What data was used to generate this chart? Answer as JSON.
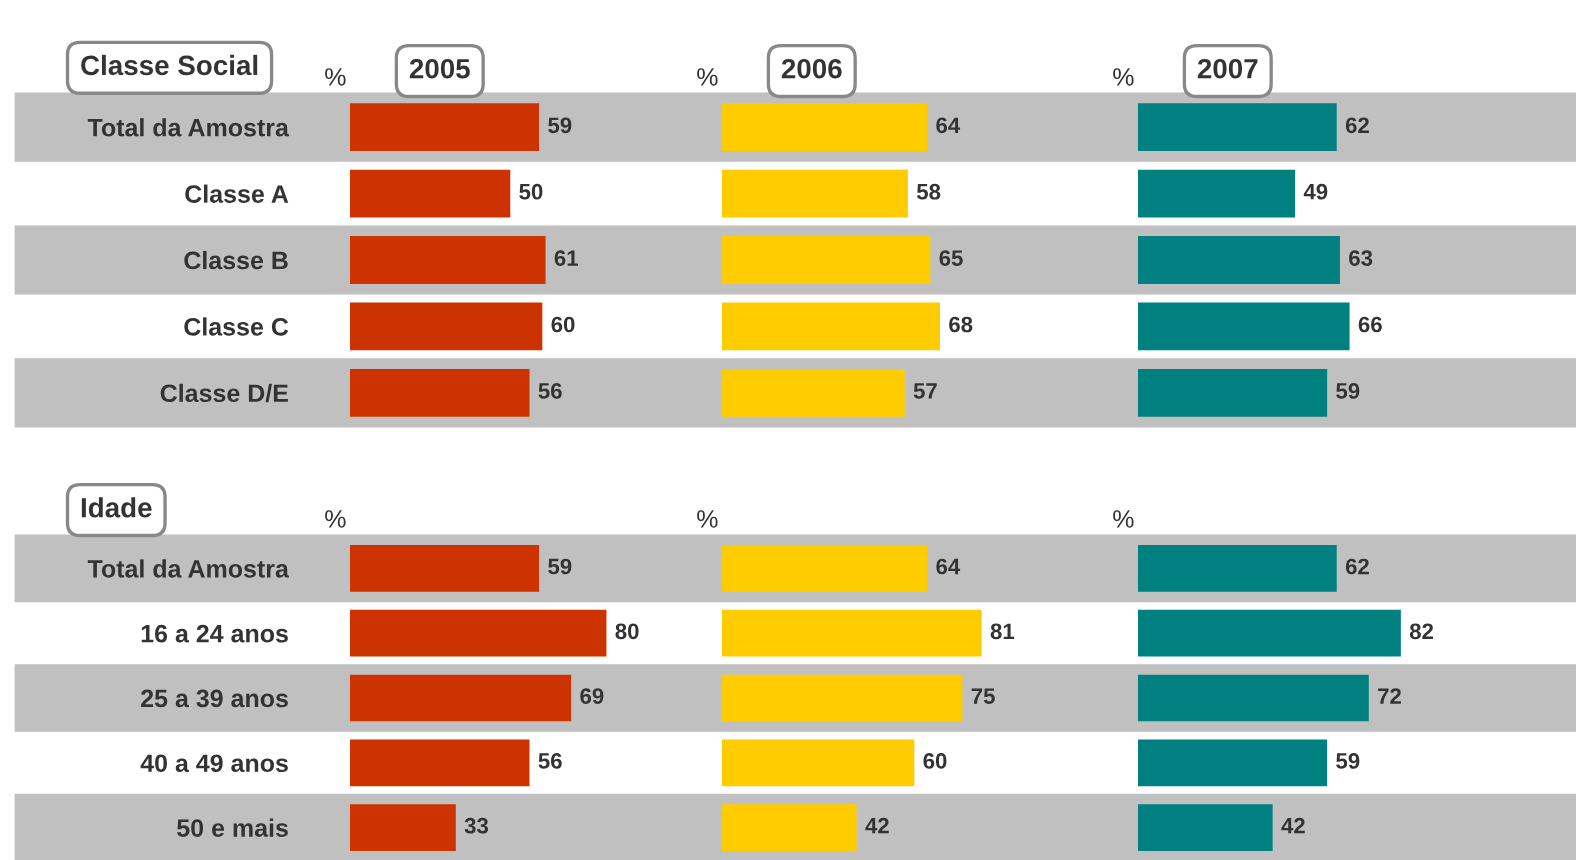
{
  "chart_data": [
    {
      "type": "bar",
      "orientation": "horizontal",
      "title": "2005",
      "subtitle": "Classe Social",
      "annotations": [
        "%"
      ],
      "tick_labels": "y",
      "data_labels": true,
      "color": "#cc3300",
      "categories": [
        "Total da Amostra",
        "Classe A",
        "Classe B",
        "Classe C",
        "Classe D/E"
      ],
      "values": [
        59,
        50,
        61,
        60,
        56
      ]
    },
    {
      "type": "bar",
      "orientation": "horizontal",
      "title": "2006",
      "annotations": [
        "%"
      ],
      "tick_labels": false,
      "data_labels": true,
      "color": "#ffcc00",
      "categories": [
        null,
        null,
        null,
        null,
        null
      ],
      "values": [
        64,
        58,
        65,
        68,
        57
      ]
    },
    {
      "type": "bar",
      "orientation": "horizontal",
      "title": "2007",
      "annotations": [
        "%"
      ],
      "tick_labels": false,
      "data_labels": true,
      "color": "#008080",
      "categories": [
        null,
        null,
        null,
        null,
        null
      ],
      "values": [
        62,
        49,
        63,
        66,
        59
      ]
    },
    {
      "type": "bar",
      "orientation": "horizontal",
      "subtitle": "Idade",
      "annotations": [
        "%"
      ],
      "tick_labels": "y",
      "data_labels": true,
      "color": "#cc3300",
      "categories": [
        "Total da Amostra",
        "16 a 24 anos",
        "25 a 39 anos",
        "40 a 49 anos",
        "50 e mais"
      ],
      "values": [
        59,
        80,
        69,
        56,
        33
      ]
    },
    {
      "type": "bar",
      "orientation": "horizontal",
      "annotations": [
        "%"
      ],
      "tick_labels": false,
      "data_labels": true,
      "color": "#ffcc00",
      "categories": [
        null,
        null,
        null,
        null,
        null
      ],
      "values": [
        64,
        81,
        75,
        60,
        42
      ]
    },
    {
      "type": "bar",
      "orientation": "horizontal",
      "annotations": [
        "%"
      ],
      "tick_labels": false,
      "data_labels": true,
      "color": "#008080",
      "categories": [
        null,
        null,
        null,
        null,
        null
      ],
      "values": [
        62,
        82,
        72,
        59,
        42
      ]
    }
  ]
}
